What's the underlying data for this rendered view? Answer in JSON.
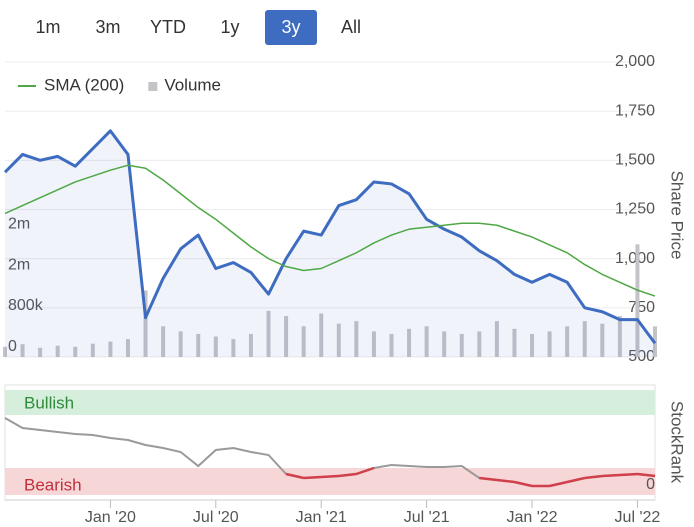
{
  "range_buttons": {
    "labels": [
      "1m",
      "3m",
      "YTD",
      "1y",
      "3y",
      "All"
    ],
    "selected": 4
  },
  "chart_data": [
    {
      "type": "line",
      "x": [
        "2019-07",
        "2019-08",
        "2019-09",
        "2019-10",
        "2019-11",
        "2019-12",
        "2020-01",
        "2020-02",
        "2020-03",
        "2020-04",
        "2020-05",
        "2020-06",
        "2020-07",
        "2020-08",
        "2020-09",
        "2020-10",
        "2020-11",
        "2020-12",
        "2021-01",
        "2021-02",
        "2021-03",
        "2021-04",
        "2021-05",
        "2021-06",
        "2021-07",
        "2021-08",
        "2021-09",
        "2021-10",
        "2021-11",
        "2021-12",
        "2022-01",
        "2022-02",
        "2022-03",
        "2022-04",
        "2022-05",
        "2022-06",
        "2022-07",
        "2022-08"
      ],
      "xlim": [
        "2019-07",
        "2022-08"
      ],
      "xticks": [
        {
          "value": "2020-01",
          "label": "Jan '20"
        },
        {
          "value": "2020-07",
          "label": "Jul '20"
        },
        {
          "value": "2021-01",
          "label": "Jan '21"
        },
        {
          "value": "2021-07",
          "label": "Jul '21"
        },
        {
          "value": "2022-01",
          "label": "Jan '22"
        },
        {
          "value": "2022-07",
          "label": "Jul '22"
        }
      ],
      "ylabel": "Share Price",
      "ylim": [
        500,
        2000
      ],
      "yticks": [
        {
          "value": 2000,
          "label": "2,000"
        },
        {
          "value": 1750,
          "label": "1,750"
        },
        {
          "value": 1500,
          "label": "1,500"
        },
        {
          "value": 1250,
          "label": "1,250"
        },
        {
          "value": 1000,
          "label": "1,000"
        },
        750,
        500
      ],
      "y2lim": [
        0,
        5760000
      ],
      "y2ticks": [
        {
          "value": 2400000,
          "label": "2m"
        },
        {
          "value": 1600000,
          "label": "2m"
        },
        {
          "value": 800000,
          "label": "800k"
        },
        0
      ],
      "grid": true,
      "legend": "top-left",
      "series": [
        {
          "color": "#3d6cc0",
          "values": [
            1440,
            1530,
            1500,
            1520,
            1470,
            1560,
            1650,
            1530,
            700,
            900,
            1050,
            1120,
            950,
            980,
            930,
            820,
            1000,
            1140,
            1120,
            1270,
            1300,
            1390,
            1380,
            1330,
            1200,
            1150,
            1110,
            1040,
            990,
            920,
            880,
            920,
            880,
            750,
            730,
            690,
            690,
            570
          ]
        },
        {
          "name": "SMA (200)",
          "color": "#4fa845",
          "values": [
            1230,
            1270,
            1310,
            1350,
            1390,
            1420,
            1450,
            1475,
            1460,
            1400,
            1330,
            1260,
            1200,
            1130,
            1060,
            1000,
            960,
            940,
            950,
            990,
            1030,
            1080,
            1120,
            1150,
            1160,
            1170,
            1180,
            1180,
            1170,
            1140,
            1110,
            1070,
            1030,
            970,
            920,
            880,
            840,
            810
          ]
        },
        {
          "name": "Volume",
          "color": "#c4c4c8",
          "axis": "y2",
          "values": [
            200000,
            250000,
            180000,
            220000,
            200000,
            260000,
            300000,
            350000,
            1300000,
            600000,
            500000,
            450000,
            400000,
            350000,
            450000,
            900000,
            800000,
            600000,
            850000,
            650000,
            700000,
            500000,
            450000,
            550000,
            600000,
            500000,
            450000,
            500000,
            700000,
            550000,
            450000,
            500000,
            600000,
            700000,
            650000,
            800000,
            2200000,
            600000
          ]
        }
      ]
    },
    {
      "type": "line",
      "ylabel": "StockRank",
      "ylim": [
        0,
        100
      ],
      "yticks": [
        0
      ],
      "bands": {
        "top": "Bullish",
        "bottom": "Bearish"
      },
      "bearish_color": "#d0404a",
      "series": [
        {
          "color": "#9a9a9a",
          "values": [
            72,
            62,
            60,
            58,
            56,
            55,
            52,
            50,
            45,
            42,
            38,
            24,
            40,
            42,
            38,
            35,
            16,
            12,
            13,
            14,
            16,
            22,
            25,
            24,
            23,
            23,
            24,
            12,
            10,
            8,
            4,
            4,
            8,
            12,
            14,
            15,
            16,
            14
          ]
        }
      ]
    }
  ]
}
